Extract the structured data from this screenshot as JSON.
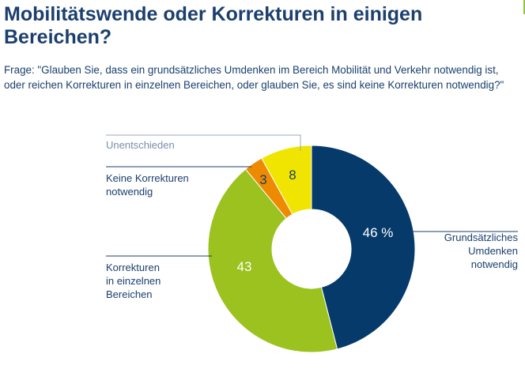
{
  "header": {
    "title": "Mobilitätswende oder Korrekturen in einigen Bereichen?",
    "question": "Frage: \"Glauben Sie, dass ein grundsätzliches Umdenken im Bereich Mobilität und Verkehr notwendig ist, oder reichen Korrekturen in einzelnen Bereichen, oder glauben Sie, es sind keine Korrekturen notwendig?\""
  },
  "chart_data": {
    "type": "pie",
    "variant": "donut",
    "slices": [
      {
        "label": [
          "Grundsätzliches",
          "Umdenken",
          "notwendig"
        ],
        "value": 46,
        "display": "46 %",
        "color": "#063a6b",
        "value_color": "#ffffff"
      },
      {
        "label": [
          "Korrekturen",
          "in einzelnen",
          "Bereichen"
        ],
        "value": 43,
        "display": "43",
        "color": "#9bc21e",
        "value_color": "#ffffff"
      },
      {
        "label": [
          "Keine Korrekturen",
          "notwendig"
        ],
        "value": 3,
        "display": "3",
        "color": "#ed8a00",
        "value_color": "#1b3f6e"
      },
      {
        "label": [
          "Unentschieden"
        ],
        "value": 8,
        "display": "8",
        "color": "#f0e500",
        "value_color": "#1b3f6e"
      }
    ]
  }
}
